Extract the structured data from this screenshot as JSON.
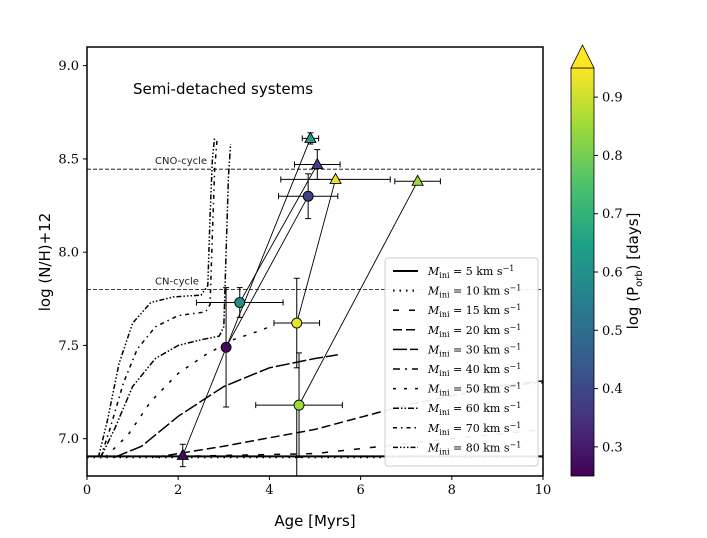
{
  "chart_data": {
    "type": "scatter",
    "title": "Semi-detached systems",
    "xlabel": "Age [Myrs]",
    "ylabel": "log (N/H)+12",
    "xlim": [
      0,
      10
    ],
    "ylim": [
      6.8,
      9.1
    ],
    "xticks": [
      0,
      2,
      4,
      6,
      8,
      10
    ],
    "yticks": [
      7.0,
      7.5,
      8.0,
      8.5,
      9.0
    ],
    "colorbar": {
      "label": "log (P_orb) [days]",
      "label_main": "log (P",
      "label_sub": "orb",
      "label_tail": ") [days]",
      "range": [
        0.25,
        0.95
      ],
      "ticks": [
        0.3,
        0.4,
        0.5,
        0.6,
        0.7,
        0.8,
        0.9
      ],
      "extend": "max"
    },
    "reference_lines": [
      {
        "label": "CNO-cycle",
        "y": 8.445
      },
      {
        "label": "CN-cycle",
        "y": 7.8
      }
    ],
    "legend": {
      "placement": "lower-right",
      "entries": [
        {
          "label": "M_ini = 5 km s^-1",
          "prefix": "M",
          "sub": "ini",
          "text": " = 5 km s",
          "exp": "−1",
          "dash": ""
        },
        {
          "label": "M_ini = 10 km s^-1",
          "prefix": "M",
          "sub": "ini",
          "text": " = 10 km s",
          "exp": "−1",
          "dash": "1.5 5"
        },
        {
          "label": "M_ini = 15 km s^-1",
          "prefix": "M",
          "sub": "ini",
          "text": " = 15 km s",
          "exp": "−1",
          "dash": "6 10"
        },
        {
          "label": "M_ini = 20 km s^-1",
          "prefix": "M",
          "sub": "ini",
          "text": " = 20 km s",
          "exp": "−1",
          "dash": "9 4"
        },
        {
          "label": "M_ini = 30 km s^-1",
          "prefix": "M",
          "sub": "ini",
          "text": " = 30 km s",
          "exp": "−1",
          "dash": "14 3"
        },
        {
          "label": "M_ini = 40 km s^-1",
          "prefix": "M",
          "sub": "ini",
          "text": " = 40 km s",
          "exp": "−1",
          "dash": "7 5 2 5"
        },
        {
          "label": "M_ini = 50 km s^-1",
          "prefix": "M",
          "sub": "ini",
          "text": " = 50 km s",
          "exp": "−1",
          "dash": "3 8"
        },
        {
          "label": "M_ini = 60 km s^-1",
          "prefix": "M",
          "sub": "ini",
          "text": " = 60 km s",
          "exp": "−1",
          "dash": "6 2 1.5 2 1.5 2"
        },
        {
          "label": "M_ini = 70 km s^-1",
          "prefix": "M",
          "sub": "ini",
          "text": " = 70 km s",
          "exp": "−1",
          "dash": "4 4 1.5 4"
        },
        {
          "label": "M_ini = 80 km s^-1",
          "prefix": "M",
          "sub": "ini",
          "text": " = 80 km s",
          "exp": "−1",
          "dash": "5 2 1.5 2 1.5 2 1.5 2"
        }
      ]
    },
    "tracks": [
      {
        "name": "5 km s^-1",
        "points": [
          [
            0,
            6.905
          ],
          [
            10,
            6.905
          ]
        ]
      },
      {
        "name": "10 km s^-1",
        "points": [
          [
            0,
            6.9
          ],
          [
            10,
            6.9
          ]
        ]
      },
      {
        "name": "15 km s^-1",
        "points": [
          [
            2,
            6.905
          ],
          [
            5,
            6.92
          ],
          [
            8,
            7.0
          ],
          [
            10,
            7.05
          ]
        ]
      },
      {
        "name": "20 km s^-1",
        "points": [
          [
            1.5,
            6.9
          ],
          [
            3,
            6.96
          ],
          [
            5,
            7.05
          ],
          [
            7,
            7.18
          ],
          [
            9,
            7.28
          ],
          [
            10,
            7.31
          ]
        ]
      },
      {
        "name": "30 km s^-1",
        "points": [
          [
            0.6,
            6.9
          ],
          [
            1.2,
            6.96
          ],
          [
            2,
            7.12
          ],
          [
            3,
            7.28
          ],
          [
            4,
            7.38
          ],
          [
            5,
            7.43
          ],
          [
            5.5,
            7.45
          ]
        ]
      },
      {
        "name": "40 km s^-1",
        "points": [
          [
            8.3,
            7.27
          ],
          [
            10,
            7.3
          ]
        ]
      },
      {
        "name": "50 km s^-1",
        "points": [
          [
            0.4,
            6.9
          ],
          [
            0.9,
            7.02
          ],
          [
            1.4,
            7.2
          ],
          [
            2,
            7.35
          ],
          [
            2.6,
            7.45
          ],
          [
            3.2,
            7.53
          ],
          [
            3.8,
            7.58
          ],
          [
            4,
            7.6
          ]
        ]
      },
      {
        "name": "60 km s^-1",
        "points": [
          [
            0.3,
            6.9
          ],
          [
            0.6,
            7.05
          ],
          [
            1,
            7.28
          ],
          [
            1.5,
            7.43
          ],
          [
            2,
            7.5
          ],
          [
            2.5,
            7.53
          ],
          [
            2.9,
            7.55
          ],
          [
            3,
            7.6
          ],
          [
            3.05,
            8.0
          ],
          [
            3.1,
            8.4
          ],
          [
            3.15,
            8.58
          ]
        ]
      },
      {
        "name": "70 km s^-1",
        "points": [
          [
            0.3,
            6.9
          ],
          [
            0.5,
            7.05
          ],
          [
            0.8,
            7.3
          ],
          [
            1.1,
            7.48
          ],
          [
            1.5,
            7.6
          ],
          [
            2,
            7.66
          ],
          [
            2.6,
            7.68
          ],
          [
            2.7,
            7.72
          ],
          [
            2.75,
            8.1
          ],
          [
            2.8,
            8.45
          ],
          [
            2.85,
            8.6
          ]
        ]
      },
      {
        "name": "80 km s^-1",
        "points": [
          [
            0.25,
            6.9
          ],
          [
            0.45,
            7.1
          ],
          [
            0.7,
            7.4
          ],
          [
            1,
            7.62
          ],
          [
            1.4,
            7.73
          ],
          [
            1.9,
            7.76
          ],
          [
            2.5,
            7.77
          ],
          [
            2.65,
            7.82
          ],
          [
            2.7,
            8.2
          ],
          [
            2.75,
            8.5
          ],
          [
            2.8,
            8.62
          ]
        ]
      }
    ],
    "points": [
      {
        "x": 2.1,
        "y": 6.91,
        "yerr": 0.06,
        "marker": "triangle",
        "c": 0.27
      },
      {
        "x": 3.05,
        "y": 7.49,
        "yerr": 0.32,
        "marker": "circle",
        "c": 0.27
      },
      {
        "x": 3.35,
        "y": 7.73,
        "xerr": 0.95,
        "yerr": 0.08,
        "marker": "circle",
        "c": 0.6
      },
      {
        "x": 4.65,
        "y": 7.18,
        "xerr": 0.95,
        "yerr": 0.28,
        "marker": "circle",
        "c": 0.85
      },
      {
        "x": 4.6,
        "y": 7.62,
        "xerr": 0.5,
        "yerr": 0.24,
        "marker": "circle",
        "c": 0.93
      },
      {
        "x": 4.85,
        "y": 8.3,
        "xerr": 0.65,
        "yerr": 0.12,
        "marker": "circle",
        "c": 0.38
      },
      {
        "x": 4.9,
        "y": 8.61,
        "xerr": 0.18,
        "yerr": 0.03,
        "marker": "triangle",
        "c": 0.65
      },
      {
        "x": 5.05,
        "y": 8.47,
        "xerr": 0.5,
        "yerr": 0.08,
        "marker": "triangle",
        "c": 0.38
      },
      {
        "x": 5.45,
        "y": 8.39,
        "xerr": 1.2,
        "marker": "triangle",
        "c": 0.93
      },
      {
        "x": 7.25,
        "y": 8.38,
        "xerr": 0.5,
        "marker": "triangle",
        "c": 0.85
      }
    ],
    "connections": [
      [
        [
          2.1,
          6.91
        ],
        [
          4.9,
          8.61
        ]
      ],
      [
        [
          4.65,
          7.18
        ],
        [
          7.25,
          8.38
        ]
      ],
      [
        [
          4.6,
          7.62
        ],
        [
          5.45,
          8.39
        ]
      ],
      [
        [
          3.35,
          7.73
        ],
        [
          5.05,
          8.47
        ]
      ],
      [
        [
          3.05,
          7.49
        ],
        [
          4.85,
          8.3
        ]
      ]
    ],
    "vertical_line": {
      "x": 4.6,
      "y_from": 6.8,
      "y_to": 7.18
    }
  }
}
